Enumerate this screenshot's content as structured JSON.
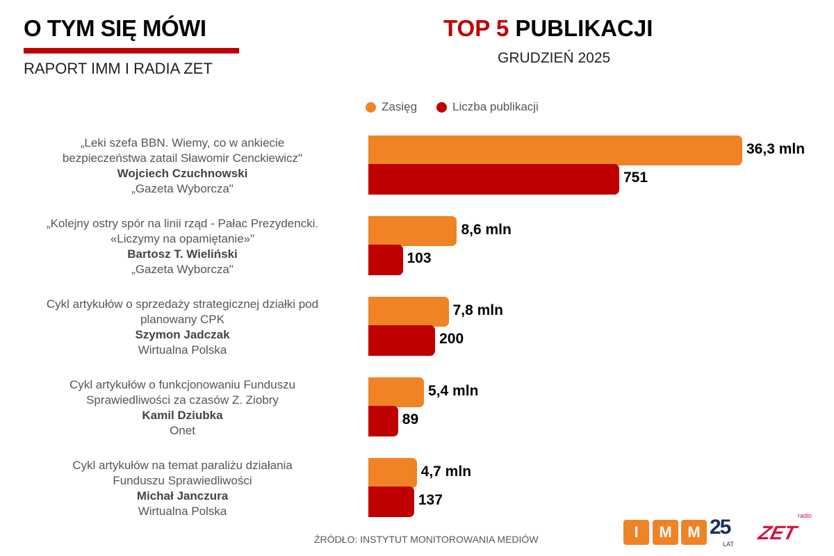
{
  "header": {
    "brand_title": "O TYM SIĘ MÓWI",
    "brand_subtitle": "RAPORT IMM I RADIA ZET",
    "title_accent": "TOP 5",
    "title_rest": "PUBLIKACJI",
    "subtitle": "GRUDZIEŃ 2025"
  },
  "colors": {
    "reach": "#ef8326",
    "publications": "#c00000",
    "accent": "#c00000"
  },
  "chart_data": {
    "type": "bar",
    "orientation": "horizontal",
    "categories": [
      {
        "title_lines": [
          "„Leki szefa BBN. Wiemy, co w ankiecie",
          "bezpieczeństwa zatail Sławomir Cenckiewicz\""
        ],
        "author": "Wojciech Czuchnowski",
        "outlet": "„Gazeta Wyborcza\""
      },
      {
        "title_lines": [
          "„Kolejny ostry spór na linii rząd - Pałac Prezydencki.",
          "«Liczymy na opamiętanie»\""
        ],
        "author": "Bartosz T. Wieliński",
        "outlet": "„Gazeta Wyborcza\""
      },
      {
        "title_lines": [
          "Cykl artykułów o sprzedaży strategicznej działki pod",
          "planowany CPK"
        ],
        "author": "Szymon Jadczak",
        "outlet": "Wirtualna Polska"
      },
      {
        "title_lines": [
          "Cykl artykułów o funkcjonowaniu Funduszu",
          "Sprawiedliwości  za czasów Z. Ziobry"
        ],
        "author": "Kamil Dziubka",
        "outlet": "Onet"
      },
      {
        "title_lines": [
          "Cykl artykułów na temat paraliżu działania",
          "Funduszu Sprawiedliwości"
        ],
        "author": "Michał Janczura",
        "outlet": "Wirtualna Polska"
      }
    ],
    "series": [
      {
        "name": "Zasięg",
        "values": [
          36.3,
          8.6,
          7.8,
          5.4,
          4.7
        ],
        "labels": [
          "36,3 mln",
          "8,6 mln",
          "7,8 mln",
          "5,4 mln",
          "4,7 mln"
        ]
      },
      {
        "name": "Liczba publikacji",
        "values": [
          751,
          103,
          200,
          89,
          137
        ],
        "labels": [
          "751",
          "103",
          "200",
          "89",
          "137"
        ]
      }
    ],
    "legend": "top",
    "grid": false
  },
  "footer": {
    "source": "ŹRÓDŁO: INSTYTUT MONITOROWANIA MEDIÓW",
    "imm_letters": [
      "I",
      "M",
      "M"
    ],
    "imm_years": "25",
    "imm_years_unit": "LAT",
    "zet_small": "radio",
    "zet_logo": "ZET"
  }
}
